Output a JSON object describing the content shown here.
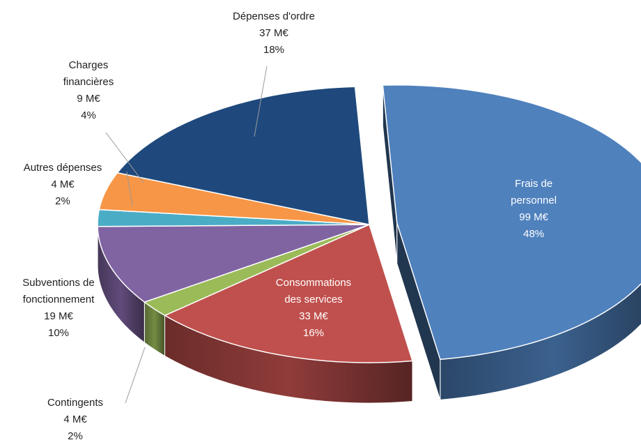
{
  "chart_data": {
    "type": "pie",
    "unit": "M€",
    "slices": [
      {
        "name": "Frais de personnel",
        "lines": [
          "Frais de",
          "personnel"
        ],
        "value": 99,
        "value_label": "99 M€",
        "percent": 48,
        "percent_label": "48%",
        "color": "#4f81bd",
        "exploded": true
      },
      {
        "name": "Consommations des services",
        "lines": [
          "Consommations",
          "des services"
        ],
        "value": 33,
        "value_label": "33 M€",
        "percent": 16,
        "percent_label": "16%",
        "color": "#c0504d"
      },
      {
        "name": "Contingents",
        "lines": [
          "Contingents"
        ],
        "value": 4,
        "value_label": "4 M€",
        "percent": 2,
        "percent_label": "2%",
        "color": "#9bbb59"
      },
      {
        "name": "Subventions de fonctionnement",
        "lines": [
          "Subventions de",
          "fonctionnement"
        ],
        "value": 19,
        "value_label": "19 M€",
        "percent": 10,
        "percent_label": "10%",
        "color": "#8064a2"
      },
      {
        "name": "Autres dépenses",
        "lines": [
          "Autres dépenses"
        ],
        "value": 4,
        "value_label": "4 M€",
        "percent": 2,
        "percent_label": "2%",
        "color": "#4bacc6"
      },
      {
        "name": "Charges financières",
        "lines": [
          "Charges",
          "financières"
        ],
        "value": 9,
        "value_label": "9 M€",
        "percent": 4,
        "percent_label": "4%",
        "color": "#f79646"
      },
      {
        "name": "Dépenses d'ordre",
        "lines": [
          "Dépenses d'ordre"
        ],
        "value": 37,
        "value_label": "37 M€",
        "percent": 18,
        "percent_label": "18%",
        "color": "#1f497d"
      }
    ]
  }
}
